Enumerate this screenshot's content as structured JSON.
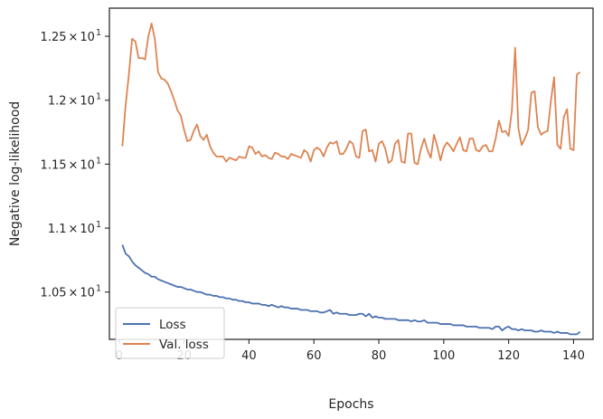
{
  "chart_data": {
    "type": "line",
    "xlabel": "Epochs",
    "ylabel": "Negative log-likelihood",
    "xlim": [
      -3,
      146
    ],
    "ylim": [
      10.13,
      12.72
    ],
    "x_ticks": [
      {
        "value": 0,
        "label": "0"
      },
      {
        "value": 20,
        "label": "20"
      },
      {
        "value": 40,
        "label": "40"
      },
      {
        "value": 60,
        "label": "60"
      },
      {
        "value": 80,
        "label": "80"
      },
      {
        "value": 100,
        "label": "100"
      },
      {
        "value": 120,
        "label": "120"
      },
      {
        "value": 140,
        "label": "140"
      }
    ],
    "y_ticks": [
      {
        "value": 10.5,
        "mantissa": "1.05",
        "times": "×",
        "base": "10",
        "exp": "1"
      },
      {
        "value": 11.0,
        "mantissa": "1.1",
        "times": "×",
        "base": "10",
        "exp": "1"
      },
      {
        "value": 11.5,
        "mantissa": "1.15",
        "times": "×",
        "base": "10",
        "exp": "1"
      },
      {
        "value": 12.0,
        "mantissa": "1.2",
        "times": "×",
        "base": "10",
        "exp": "1"
      },
      {
        "value": 12.5,
        "mantissa": "1.25",
        "times": "×",
        "base": "10",
        "exp": "1"
      }
    ],
    "grid": false,
    "legend_placement": "lower-left",
    "series": [
      {
        "name": "Loss",
        "color": "#4c72b0",
        "x": [
          1,
          2,
          3,
          4,
          5,
          6,
          7,
          8,
          9,
          10,
          11,
          12,
          13,
          14,
          15,
          16,
          17,
          18,
          19,
          20,
          21,
          22,
          23,
          24,
          25,
          26,
          27,
          28,
          29,
          30,
          31,
          32,
          33,
          34,
          35,
          36,
          37,
          38,
          39,
          40,
          41,
          42,
          43,
          44,
          45,
          46,
          47,
          48,
          49,
          50,
          51,
          52,
          53,
          54,
          55,
          56,
          57,
          58,
          59,
          60,
          61,
          62,
          63,
          64,
          65,
          66,
          67,
          68,
          69,
          70,
          71,
          72,
          73,
          74,
          75,
          76,
          77,
          78,
          79,
          80,
          81,
          82,
          83,
          84,
          85,
          86,
          87,
          88,
          89,
          90,
          91,
          92,
          93,
          94,
          95,
          96,
          97,
          98,
          99,
          100,
          101,
          102,
          103,
          104,
          105,
          106,
          107,
          108,
          109,
          110,
          111,
          112,
          113,
          114,
          115,
          116,
          117,
          118,
          119,
          120,
          121,
          122,
          123,
          124,
          125,
          126,
          127,
          128,
          129,
          130,
          131,
          132,
          133,
          134,
          135,
          136,
          137,
          138,
          139,
          140,
          141,
          142
        ],
        "y": [
          10.87,
          10.8,
          10.78,
          10.74,
          10.71,
          10.69,
          10.67,
          10.65,
          10.64,
          10.62,
          10.62,
          10.6,
          10.59,
          10.58,
          10.57,
          10.56,
          10.55,
          10.54,
          10.54,
          10.53,
          10.52,
          10.52,
          10.51,
          10.5,
          10.5,
          10.49,
          10.48,
          10.48,
          10.47,
          10.47,
          10.46,
          10.46,
          10.45,
          10.45,
          10.44,
          10.44,
          10.43,
          10.43,
          10.42,
          10.42,
          10.41,
          10.41,
          10.41,
          10.4,
          10.4,
          10.39,
          10.4,
          10.39,
          10.38,
          10.39,
          10.38,
          10.38,
          10.37,
          10.37,
          10.37,
          10.36,
          10.36,
          10.36,
          10.35,
          10.35,
          10.35,
          10.34,
          10.34,
          10.35,
          10.36,
          10.33,
          10.34,
          10.33,
          10.33,
          10.33,
          10.32,
          10.32,
          10.32,
          10.33,
          10.33,
          10.31,
          10.33,
          10.3,
          10.31,
          10.3,
          10.3,
          10.29,
          10.29,
          10.29,
          10.29,
          10.28,
          10.28,
          10.28,
          10.28,
          10.27,
          10.28,
          10.27,
          10.27,
          10.28,
          10.26,
          10.26,
          10.26,
          10.26,
          10.25,
          10.25,
          10.25,
          10.25,
          10.24,
          10.24,
          10.24,
          10.24,
          10.23,
          10.23,
          10.23,
          10.23,
          10.22,
          10.22,
          10.22,
          10.22,
          10.21,
          10.23,
          10.23,
          10.2,
          10.22,
          10.23,
          10.21,
          10.21,
          10.2,
          10.21,
          10.2,
          10.2,
          10.2,
          10.19,
          10.19,
          10.2,
          10.19,
          10.19,
          10.19,
          10.18,
          10.19,
          10.18,
          10.18,
          10.18,
          10.17,
          10.17,
          10.17,
          10.19
        ]
      },
      {
        "name": "Val. loss",
        "color": "#dd8452",
        "x": [
          1,
          2,
          3,
          4,
          5,
          6,
          7,
          8,
          9,
          10,
          11,
          12,
          13,
          14,
          15,
          16,
          17,
          18,
          19,
          20,
          21,
          22,
          23,
          24,
          25,
          26,
          27,
          28,
          29,
          30,
          31,
          32,
          33,
          34,
          35,
          36,
          37,
          38,
          39,
          40,
          41,
          42,
          43,
          44,
          45,
          46,
          47,
          48,
          49,
          50,
          51,
          52,
          53,
          54,
          55,
          56,
          57,
          58,
          59,
          60,
          61,
          62,
          63,
          64,
          65,
          66,
          67,
          68,
          69,
          70,
          71,
          72,
          73,
          74,
          75,
          76,
          77,
          78,
          79,
          80,
          81,
          82,
          83,
          84,
          85,
          86,
          87,
          88,
          89,
          90,
          91,
          92,
          93,
          94,
          95,
          96,
          97,
          98,
          99,
          100,
          101,
          102,
          103,
          104,
          105,
          106,
          107,
          108,
          109,
          110,
          111,
          112,
          113,
          114,
          115,
          116,
          117,
          118,
          119,
          120,
          121,
          122,
          123,
          124,
          125,
          126,
          127,
          128,
          129,
          130,
          131,
          132,
          133,
          134,
          135,
          136,
          137,
          138,
          139,
          140,
          141,
          142
        ],
        "y": [
          11.64,
          11.96,
          12.2,
          12.48,
          12.46,
          12.33,
          12.33,
          12.32,
          12.5,
          12.6,
          12.48,
          12.22,
          12.17,
          12.16,
          12.13,
          12.07,
          12.0,
          11.92,
          11.88,
          11.77,
          11.68,
          11.69,
          11.76,
          11.81,
          11.72,
          11.69,
          11.73,
          11.64,
          11.59,
          11.56,
          11.56,
          11.56,
          11.52,
          11.55,
          11.54,
          11.53,
          11.56,
          11.55,
          11.55,
          11.64,
          11.63,
          11.58,
          11.6,
          11.56,
          11.57,
          11.55,
          11.54,
          11.59,
          11.58,
          11.56,
          11.56,
          11.54,
          11.58,
          11.57,
          11.56,
          11.55,
          11.61,
          11.59,
          11.52,
          11.61,
          11.63,
          11.61,
          11.56,
          11.63,
          11.67,
          11.66,
          11.68,
          11.58,
          11.58,
          11.62,
          11.68,
          11.66,
          11.56,
          11.55,
          11.76,
          11.77,
          11.6,
          11.61,
          11.52,
          11.66,
          11.68,
          11.62,
          11.51,
          11.53,
          11.66,
          11.69,
          11.52,
          11.51,
          11.74,
          11.74,
          11.51,
          11.5,
          11.62,
          11.7,
          11.61,
          11.55,
          11.73,
          11.64,
          11.53,
          11.63,
          11.67,
          11.64,
          11.6,
          11.66,
          11.71,
          11.61,
          11.6,
          11.7,
          11.7,
          11.61,
          11.6,
          11.64,
          11.65,
          11.6,
          11.6,
          11.7,
          11.84,
          11.75,
          11.76,
          11.72,
          11.92,
          12.41,
          11.78,
          11.65,
          11.7,
          11.77,
          12.06,
          12.07,
          11.79,
          11.73,
          11.75,
          11.76,
          11.99,
          12.18,
          11.65,
          11.62,
          11.87,
          11.93,
          11.62,
          11.61,
          12.2,
          12.22
        ]
      }
    ]
  }
}
